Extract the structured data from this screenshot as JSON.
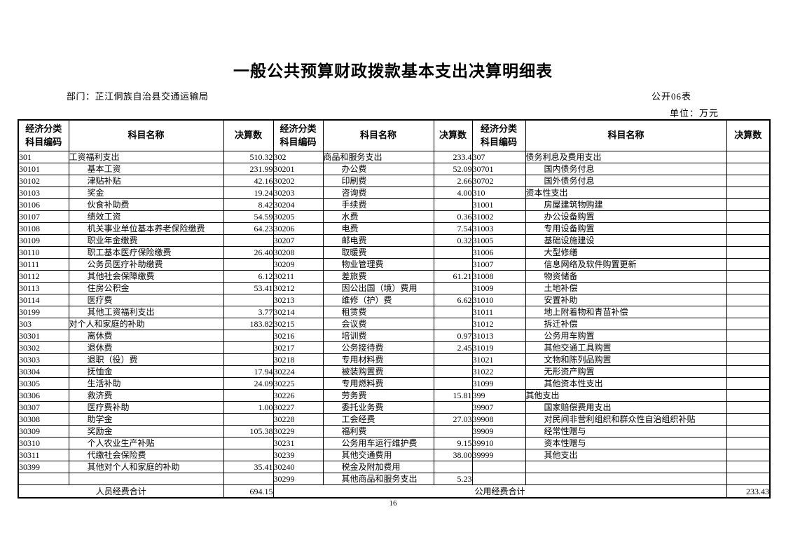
{
  "page": {
    "title": "一般公共预算财政拨款基本支出决算明细表",
    "department": "部门：芷江侗族自治县交通运输局",
    "table_code": "公开06表",
    "unit": "单位：万元",
    "page_number": "16"
  },
  "table": {
    "header": {
      "code_line1": "经济分类",
      "code_line2": "科目编码",
      "name": "科目名称",
      "amount": "决算数"
    },
    "footer": {
      "personnel_total_label": "人员经费合计",
      "personnel_total_amount": "694.15",
      "public_total_label": "公用经费合计",
      "public_total_amount": "233.43"
    },
    "rows": [
      [
        {
          "code": "301",
          "name": "工资福利支出",
          "amount": "510.32",
          "level": 1
        },
        {
          "code": "302",
          "name": "商品和服务支出",
          "amount": "233.4",
          "level": 1
        },
        {
          "code": "307",
          "name": "债务利息及费用支出",
          "amount": "",
          "level": 1
        }
      ],
      [
        {
          "code": "30101",
          "name": "基本工资",
          "amount": "231.99",
          "level": 2
        },
        {
          "code": "30201",
          "name": "办公费",
          "amount": "52.09",
          "level": 2
        },
        {
          "code": "30701",
          "name": "国内债务付息",
          "amount": "",
          "level": 2
        }
      ],
      [
        {
          "code": "30102",
          "name": "津贴补贴",
          "amount": "42.16",
          "level": 2
        },
        {
          "code": "30202",
          "name": "印刷费",
          "amount": "2.66",
          "level": 2
        },
        {
          "code": "30702",
          "name": "国外债务付息",
          "amount": "",
          "level": 2
        }
      ],
      [
        {
          "code": "30103",
          "name": "奖金",
          "amount": "19.24",
          "level": 2
        },
        {
          "code": "30203",
          "name": "咨询费",
          "amount": "4.00",
          "level": 2
        },
        {
          "code": "310",
          "name": "资本性支出",
          "amount": "",
          "level": 1
        }
      ],
      [
        {
          "code": "30106",
          "name": "伙食补助费",
          "amount": "8.42",
          "level": 2
        },
        {
          "code": "30204",
          "name": "手续费",
          "amount": "",
          "level": 2
        },
        {
          "code": "31001",
          "name": "房屋建筑物购建",
          "amount": "",
          "level": 2
        }
      ],
      [
        {
          "code": "30107",
          "name": "绩效工资",
          "amount": "54.59",
          "level": 2
        },
        {
          "code": "30205",
          "name": "水费",
          "amount": "0.36",
          "level": 2
        },
        {
          "code": "31002",
          "name": "办公设备购置",
          "amount": "",
          "level": 2
        }
      ],
      [
        {
          "code": "30108",
          "name": "机关事业单位基本养老保险缴费",
          "amount": "64.23",
          "level": 2
        },
        {
          "code": "30206",
          "name": "电费",
          "amount": "7.54",
          "level": 2
        },
        {
          "code": "31003",
          "name": "专用设备购置",
          "amount": "",
          "level": 2
        }
      ],
      [
        {
          "code": "30109",
          "name": "职业年金缴费",
          "amount": "",
          "level": 2
        },
        {
          "code": "30207",
          "name": "邮电费",
          "amount": "0.32",
          "level": 2
        },
        {
          "code": "31005",
          "name": "基础设施建设",
          "amount": "",
          "level": 2
        }
      ],
      [
        {
          "code": "30110",
          "name": "职工基本医疗保险缴费",
          "amount": "26.40",
          "level": 2
        },
        {
          "code": "30208",
          "name": "取暖费",
          "amount": "",
          "level": 2
        },
        {
          "code": "31006",
          "name": "大型修缮",
          "amount": "",
          "level": 2
        }
      ],
      [
        {
          "code": "30111",
          "name": "公务员医疗补助缴费",
          "amount": "",
          "level": 2
        },
        {
          "code": "30209",
          "name": "物业管理费",
          "amount": "",
          "level": 2
        },
        {
          "code": "31007",
          "name": "信息网络及软件购置更新",
          "amount": "",
          "level": 2
        }
      ],
      [
        {
          "code": "30112",
          "name": "其他社会保障缴费",
          "amount": "6.12",
          "level": 2
        },
        {
          "code": "30211",
          "name": "差旅费",
          "amount": "61.21",
          "level": 2
        },
        {
          "code": "31008",
          "name": "物资储备",
          "amount": "",
          "level": 2
        }
      ],
      [
        {
          "code": "30113",
          "name": "住房公积金",
          "amount": "53.41",
          "level": 2
        },
        {
          "code": "30212",
          "name": "因公出国（境）费用",
          "amount": "",
          "level": 2
        },
        {
          "code": "31009",
          "name": "土地补偿",
          "amount": "",
          "level": 2
        }
      ],
      [
        {
          "code": "30114",
          "name": "医疗费",
          "amount": "",
          "level": 2
        },
        {
          "code": "30213",
          "name": "维修（护）费",
          "amount": "6.62",
          "level": 2
        },
        {
          "code": "31010",
          "name": "安置补助",
          "amount": "",
          "level": 2
        }
      ],
      [
        {
          "code": "30199",
          "name": "其他工资福利支出",
          "amount": "3.77",
          "level": 2
        },
        {
          "code": "30214",
          "name": "租赁费",
          "amount": "",
          "level": 2
        },
        {
          "code": "31011",
          "name": "地上附着物和青苗补偿",
          "amount": "",
          "level": 2
        }
      ],
      [
        {
          "code": "303",
          "name": "对个人和家庭的补助",
          "amount": "183.82",
          "level": 1
        },
        {
          "code": "30215",
          "name": "会议费",
          "amount": "",
          "level": 2
        },
        {
          "code": "31012",
          "name": "拆迁补偿",
          "amount": "",
          "level": 2
        }
      ],
      [
        {
          "code": "30301",
          "name": "离休费",
          "amount": "",
          "level": 2
        },
        {
          "code": "30216",
          "name": "培训费",
          "amount": "0.97",
          "level": 2
        },
        {
          "code": "31013",
          "name": "公务用车购置",
          "amount": "",
          "level": 2
        }
      ],
      [
        {
          "code": "30302",
          "name": "退休费",
          "amount": "",
          "level": 2
        },
        {
          "code": "30217",
          "name": "公务接待费",
          "amount": "2.45",
          "level": 2
        },
        {
          "code": "31019",
          "name": "其他交通工具购置",
          "amount": "",
          "level": 2
        }
      ],
      [
        {
          "code": "30303",
          "name": "退职（役）费",
          "amount": "",
          "level": 2
        },
        {
          "code": "30218",
          "name": "专用材料费",
          "amount": "",
          "level": 2
        },
        {
          "code": "31021",
          "name": "文物和陈列品购置",
          "amount": "",
          "level": 2
        }
      ],
      [
        {
          "code": "30304",
          "name": "抚恤金",
          "amount": "17.94",
          "level": 2
        },
        {
          "code": "30224",
          "name": "被装购置费",
          "amount": "",
          "level": 2
        },
        {
          "code": "31022",
          "name": "无形资产购置",
          "amount": "",
          "level": 2
        }
      ],
      [
        {
          "code": "30305",
          "name": "生活补助",
          "amount": "24.09",
          "level": 2
        },
        {
          "code": "30225",
          "name": "专用燃料费",
          "amount": "",
          "level": 2
        },
        {
          "code": "31099",
          "name": "其他资本性支出",
          "amount": "",
          "level": 2
        }
      ],
      [
        {
          "code": "30306",
          "name": "救济费",
          "amount": "",
          "level": 2
        },
        {
          "code": "30226",
          "name": "劳务费",
          "amount": "15.81",
          "level": 2
        },
        {
          "code": "399",
          "name": "其他支出",
          "amount": "",
          "level": 1
        }
      ],
      [
        {
          "code": "30307",
          "name": "医疗费补助",
          "amount": "1.00",
          "level": 2
        },
        {
          "code": "30227",
          "name": "委托业务费",
          "amount": "",
          "level": 2
        },
        {
          "code": "39907",
          "name": "国家赔偿费用支出",
          "amount": "",
          "level": 2
        }
      ],
      [
        {
          "code": "30308",
          "name": "助学金",
          "amount": "",
          "level": 2
        },
        {
          "code": "30228",
          "name": "工会经费",
          "amount": "27.03",
          "level": 2
        },
        {
          "code": "39908",
          "name": "对民间非营利组织和群众性自治组织补贴",
          "amount": "",
          "level": 2
        }
      ],
      [
        {
          "code": "30309",
          "name": "奖励金",
          "amount": "105.38",
          "level": 2
        },
        {
          "code": "30229",
          "name": "福利费",
          "amount": "",
          "level": 2
        },
        {
          "code": "39909",
          "name": "经常性赠与",
          "amount": "",
          "level": 2
        }
      ],
      [
        {
          "code": "30310",
          "name": "个人农业生产补贴",
          "amount": "",
          "level": 2
        },
        {
          "code": "30231",
          "name": "公务用车运行维护费",
          "amount": "9.15",
          "level": 2
        },
        {
          "code": "39910",
          "name": "资本性赠与",
          "amount": "",
          "level": 2
        }
      ],
      [
        {
          "code": "30311",
          "name": "代缴社会保险费",
          "amount": "",
          "level": 2
        },
        {
          "code": "30239",
          "name": "其他交通费用",
          "amount": "38.00",
          "level": 2
        },
        {
          "code": "39999",
          "name": "其他支出",
          "amount": "",
          "level": 2
        }
      ],
      [
        {
          "code": "30399",
          "name": "其他对个人和家庭的补助",
          "amount": "35.41",
          "level": 2
        },
        {
          "code": "30240",
          "name": "税金及附加费用",
          "amount": "",
          "level": 2
        },
        {
          "code": "",
          "name": "",
          "amount": "",
          "level": 0
        }
      ],
      [
        {
          "code": "",
          "name": "",
          "amount": "",
          "level": 0
        },
        {
          "code": "30299",
          "name": "其他商品和服务支出",
          "amount": "5.23",
          "level": 2
        },
        {
          "code": "",
          "name": "",
          "amount": "",
          "level": 0
        }
      ]
    ]
  }
}
